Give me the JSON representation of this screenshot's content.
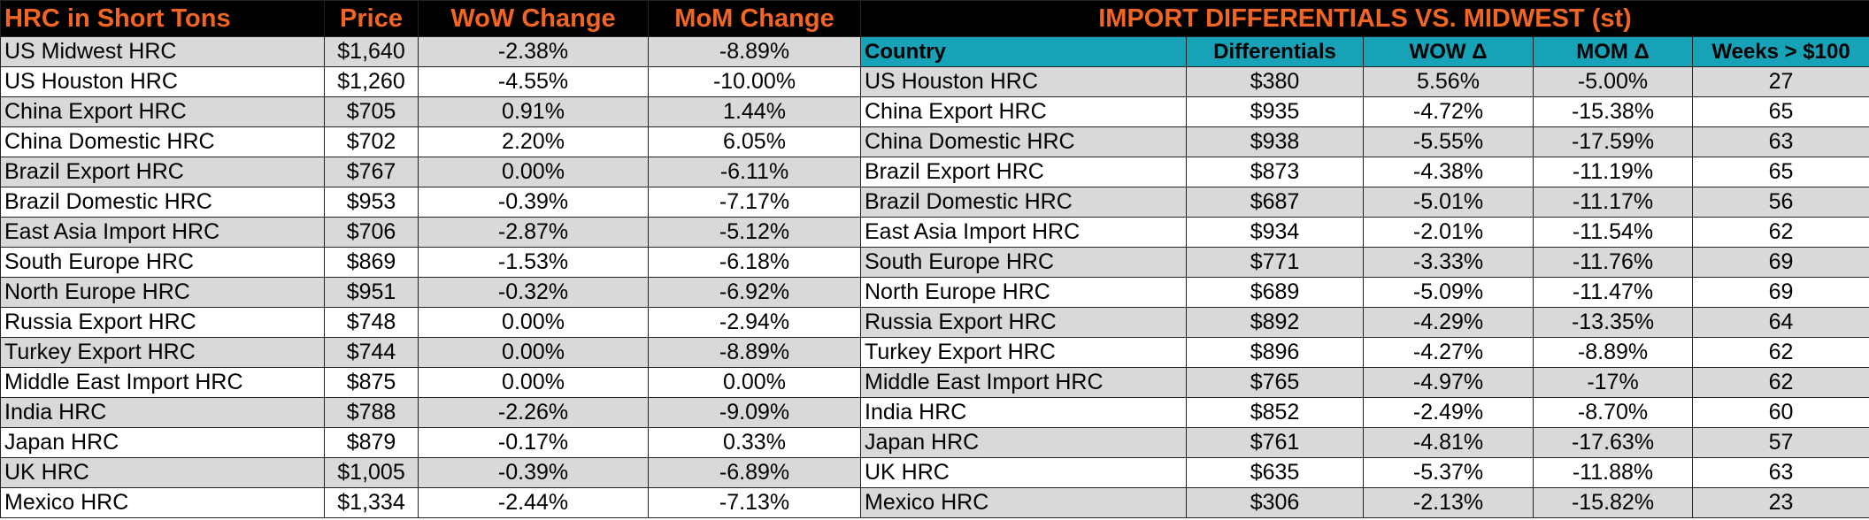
{
  "left": {
    "headers": [
      "HRC in Short Tons",
      "Price",
      "WoW Change",
      "MoM Change"
    ],
    "rows": [
      [
        "US Midwest HRC",
        "$1,640",
        "-2.38%",
        "-8.89%"
      ],
      [
        "US Houston HRC",
        "$1,260",
        "-4.55%",
        "-10.00%"
      ],
      [
        "China Export HRC",
        "$705",
        "0.91%",
        "1.44%"
      ],
      [
        "China Domestic HRC",
        "$702",
        "2.20%",
        "6.05%"
      ],
      [
        "Brazil Export HRC",
        "$767",
        "0.00%",
        "-6.11%"
      ],
      [
        "Brazil Domestic HRC",
        "$953",
        "-0.39%",
        "-7.17%"
      ],
      [
        "East Asia Import HRC",
        "$706",
        "-2.87%",
        "-5.12%"
      ],
      [
        "South Europe HRC",
        "$869",
        "-1.53%",
        "-6.18%"
      ],
      [
        "North Europe HRC",
        "$951",
        "-0.32%",
        "-6.92%"
      ],
      [
        "Russia Export HRC",
        "$748",
        "0.00%",
        "-2.94%"
      ],
      [
        "Turkey Export HRC",
        "$744",
        "0.00%",
        "-8.89%"
      ],
      [
        "Middle East Import HRC",
        "$875",
        "0.00%",
        "0.00%"
      ],
      [
        "India HRC",
        "$788",
        "-2.26%",
        "-9.09%"
      ],
      [
        "Japan HRC",
        "$879",
        "-0.17%",
        "0.33%"
      ],
      [
        "UK HRC",
        "$1,005",
        "-0.39%",
        "-6.89%"
      ],
      [
        "Mexico HRC",
        "$1,334",
        "-2.44%",
        "-7.13%"
      ]
    ]
  },
  "right": {
    "title": "IMPORT DIFFERENTIALS VS. MIDWEST (st)",
    "headers": [
      "Country",
      "Differentials",
      "WOW Δ",
      "MOM Δ",
      "Weeks > $100"
    ],
    "rows": [
      [
        "US Houston HRC",
        "$380",
        "5.56%",
        "-5.00%",
        "27"
      ],
      [
        "China Export HRC",
        "$935",
        "-4.72%",
        "-15.38%",
        "65"
      ],
      [
        "China Domestic HRC",
        "$938",
        "-5.55%",
        "-17.59%",
        "63"
      ],
      [
        "Brazil Export HRC",
        "$873",
        "-4.38%",
        "-11.19%",
        "65"
      ],
      [
        "Brazil Domestic HRC",
        "$687",
        "-5.01%",
        "-11.17%",
        "56"
      ],
      [
        "East Asia Import HRC",
        "$934",
        "-2.01%",
        "-11.54%",
        "62"
      ],
      [
        "South Europe HRC",
        "$771",
        "-3.33%",
        "-11.76%",
        "69"
      ],
      [
        "North Europe HRC",
        "$689",
        "-5.09%",
        "-11.47%",
        "69"
      ],
      [
        "Russia Export HRC",
        "$892",
        "-4.29%",
        "-13.35%",
        "64"
      ],
      [
        "Turkey Export HRC",
        "$896",
        "-4.27%",
        "-8.89%",
        "62"
      ],
      [
        "Middle East Import HRC",
        "$765",
        "-4.97%",
        "-17%",
        "62"
      ],
      [
        "India HRC",
        "$852",
        "-2.49%",
        "-8.70%",
        "60"
      ],
      [
        "Japan HRC",
        "$761",
        "-4.81%",
        "-17.63%",
        "57"
      ],
      [
        "UK HRC",
        "$635",
        "-5.37%",
        "-11.88%",
        "63"
      ],
      [
        "Mexico HRC",
        "$306",
        "-2.13%",
        "-15.82%",
        "23"
      ]
    ]
  },
  "colors": {
    "title_bg": "#000000",
    "title_text": "#f26522",
    "subheader_bg": "#17a2b8",
    "row_shade": "#d9d9d9",
    "row_plain": "#ffffff"
  }
}
